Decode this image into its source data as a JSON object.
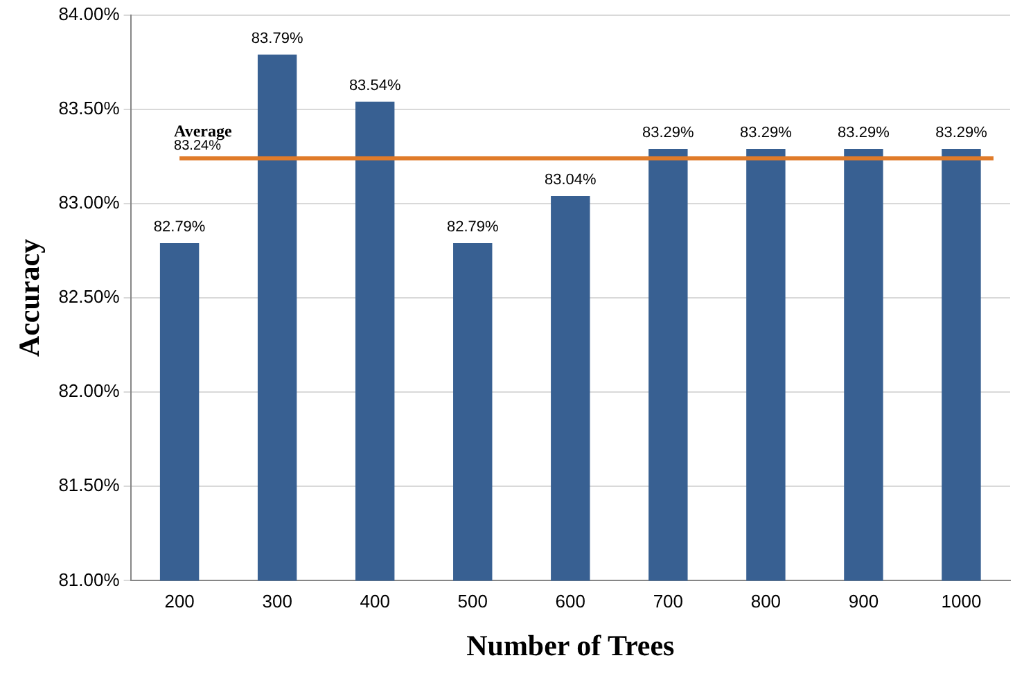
{
  "chart_data": {
    "type": "bar",
    "xlabel": "Number of Trees",
    "ylabel": "Accuracy",
    "categories": [
      "200",
      "300",
      "400",
      "500",
      "600",
      "700",
      "800",
      "900",
      "1000"
    ],
    "values": [
      82.79,
      83.79,
      83.54,
      82.79,
      83.04,
      83.29,
      83.29,
      83.29,
      83.29
    ],
    "value_labels": [
      "82.79%",
      "83.79%",
      "83.54%",
      "82.79%",
      "83.04%",
      "83.29%",
      "83.29%",
      "83.29%",
      "83.29%"
    ],
    "color": "#386092",
    "ylim": [
      81,
      84
    ],
    "yticks": [
      {
        "value": 81,
        "label": "81.00%"
      },
      {
        "value": 81.5,
        "label": "81.50%"
      },
      {
        "value": 82,
        "label": "82.00%"
      },
      {
        "value": 82.5,
        "label": "82.50%"
      },
      {
        "value": 83,
        "label": "83.00%"
      },
      {
        "value": 83.5,
        "label": "83.50%"
      },
      {
        "value": 84,
        "label": "84.00%"
      }
    ],
    "grid": "y",
    "legend": false,
    "ref_lines": [
      {
        "axis": "y",
        "value": 83.24,
        "label": "Average",
        "color": "#e07b2a"
      }
    ],
    "annotations": [
      {
        "text": "83.24%",
        "y": 83.24
      }
    ]
  }
}
